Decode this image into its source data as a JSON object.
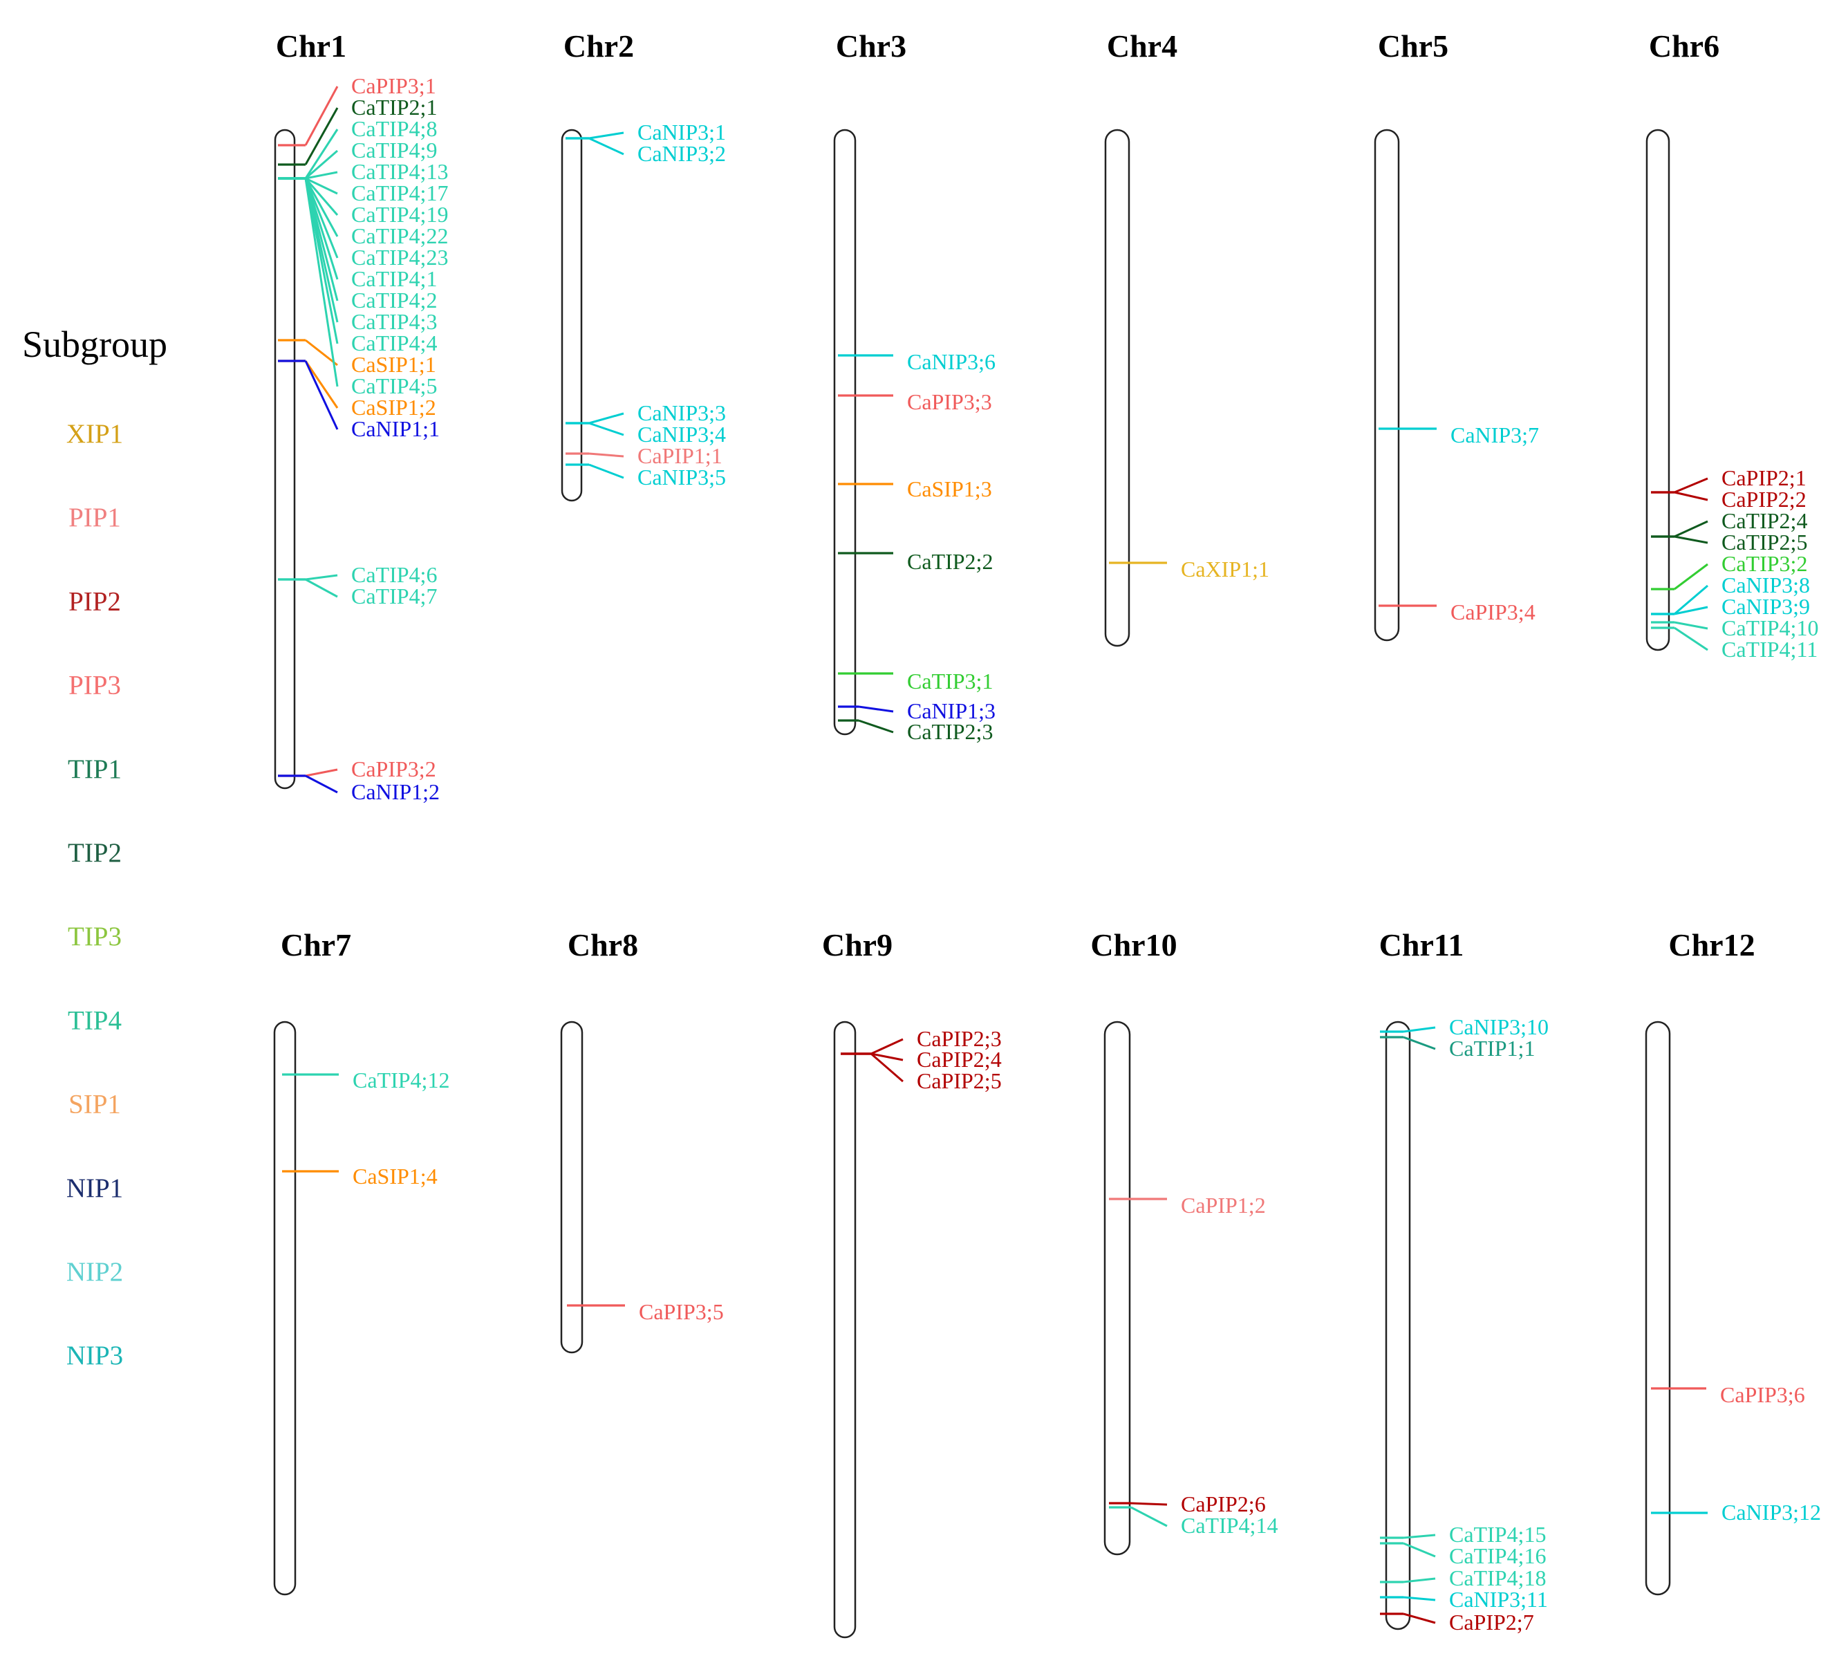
{
  "legend": {
    "title": "Subgroup",
    "items": [
      {
        "label": "XIP1",
        "color": "#D4A017"
      },
      {
        "label": "PIP1",
        "color": "#F08080"
      },
      {
        "label": "PIP2",
        "color": "#B22222"
      },
      {
        "label": "PIP3",
        "color": "#F47070"
      },
      {
        "label": "TIP1",
        "color": "#1E7B55"
      },
      {
        "label": "TIP2",
        "color": "#1E5E42"
      },
      {
        "label": "TIP3",
        "color": "#8CC63F"
      },
      {
        "label": "TIP4",
        "color": "#2BBF95"
      },
      {
        "label": "SIP1",
        "color": "#F4A460"
      },
      {
        "label": "NIP1",
        "color": "#1C2E6E"
      },
      {
        "label": "NIP2",
        "color": "#5FD0D0"
      },
      {
        "label": "NIP3",
        "color": "#1BB5B5"
      }
    ]
  },
  "chromosomes": [
    {
      "name": "Chr1",
      "genes": [
        {
          "label": "CaPIP3;1",
          "color": "#F05A5A"
        },
        {
          "label": "CaTIP2;1",
          "color": "#0F5A1E"
        },
        {
          "label": "CaTIP4;8",
          "color": "#2DD3B0"
        },
        {
          "label": "CaTIP4;9",
          "color": "#2DD3B0"
        },
        {
          "label": "CaTIP4;13",
          "color": "#2DD3B0"
        },
        {
          "label": "CaTIP4;17",
          "color": "#2DD3B0"
        },
        {
          "label": "CaTIP4;19",
          "color": "#2DD3B0"
        },
        {
          "label": "CaTIP4;22",
          "color": "#2DD3B0"
        },
        {
          "label": "CaTIP4;23",
          "color": "#2DD3B0"
        },
        {
          "label": "CaTIP4;1",
          "color": "#2DD3B0"
        },
        {
          "label": "CaTIP4;2",
          "color": "#2DD3B0"
        },
        {
          "label": "CaTIP4;3",
          "color": "#2DD3B0"
        },
        {
          "label": "CaTIP4;4",
          "color": "#2DD3B0"
        },
        {
          "label": "CaSIP1;1",
          "color": "#FF8C00"
        },
        {
          "label": "CaTIP4;5",
          "color": "#2DD3B0"
        },
        {
          "label": "CaSIP1;2",
          "color": "#FF8C00"
        },
        {
          "label": "CaNIP1;1",
          "color": "#1010E0"
        },
        {
          "label": "CaTIP4;6",
          "color": "#2DD3B0"
        },
        {
          "label": "CaTIP4;7",
          "color": "#2DD3B0"
        },
        {
          "label": "CaPIP3;2",
          "color": "#F05A5A"
        },
        {
          "label": "CaNIP1;2",
          "color": "#1010E0"
        }
      ]
    },
    {
      "name": "Chr2",
      "genes": [
        {
          "label": "CaNIP3;1",
          "color": "#00CED1"
        },
        {
          "label": "CaNIP3;2",
          "color": "#00CED1"
        },
        {
          "label": "CaNIP3;3",
          "color": "#00CED1"
        },
        {
          "label": "CaNIP3;4",
          "color": "#00CED1"
        },
        {
          "label": "CaPIP1;1",
          "color": "#F07878"
        },
        {
          "label": "CaNIP3;5",
          "color": "#00CED1"
        }
      ]
    },
    {
      "name": "Chr3",
      "genes": [
        {
          "label": "CaNIP3;6",
          "color": "#00CED1"
        },
        {
          "label": "CaPIP3;3",
          "color": "#F05A5A"
        },
        {
          "label": "CaSIP1;3",
          "color": "#FF8C00"
        },
        {
          "label": "CaTIP2;2",
          "color": "#0F5A1E"
        },
        {
          "label": "CaTIP3;1",
          "color": "#32CD32"
        },
        {
          "label": "CaNIP1;3",
          "color": "#1010E0"
        },
        {
          "label": "CaTIP2;3",
          "color": "#0F5A1E"
        }
      ]
    },
    {
      "name": "Chr4",
      "genes": [
        {
          "label": "CaXIP1;1",
          "color": "#E6B422"
        }
      ]
    },
    {
      "name": "Chr5",
      "genes": [
        {
          "label": "CaNIP3;7",
          "color": "#00CED1"
        },
        {
          "label": "CaPIP3;4",
          "color": "#F05A5A"
        }
      ]
    },
    {
      "name": "Chr6",
      "genes": [
        {
          "label": "CaPIP2;1",
          "color": "#B20000"
        },
        {
          "label": "CaPIP2;2",
          "color": "#B20000"
        },
        {
          "label": "CaTIP2;4",
          "color": "#0F5A1E"
        },
        {
          "label": "CaTIP2;5",
          "color": "#0F5A1E"
        },
        {
          "label": "CaTIP3;2",
          "color": "#32CD32"
        },
        {
          "label": "CaNIP3;8",
          "color": "#00CED1"
        },
        {
          "label": "CaNIP3;9",
          "color": "#00CED1"
        },
        {
          "label": "CaTIP4;10",
          "color": "#2DD3B0"
        },
        {
          "label": "CaTIP4;11",
          "color": "#2DD3B0"
        }
      ]
    },
    {
      "name": "Chr7",
      "genes": [
        {
          "label": "CaTIP4;12",
          "color": "#2DD3B0"
        },
        {
          "label": "CaSIP1;4",
          "color": "#FF8C00"
        }
      ]
    },
    {
      "name": "Chr8",
      "genes": [
        {
          "label": "CaPIP3;5",
          "color": "#F05A5A"
        }
      ]
    },
    {
      "name": "Chr9",
      "genes": [
        {
          "label": "CaPIP2;3",
          "color": "#B20000"
        },
        {
          "label": "CaPIP2;4",
          "color": "#B20000"
        },
        {
          "label": "CaPIP2;5",
          "color": "#B20000"
        }
      ]
    },
    {
      "name": "Chr10",
      "genes": [
        {
          "label": "CaPIP1;2",
          "color": "#F07878"
        },
        {
          "label": "CaPIP2;6",
          "color": "#B20000"
        },
        {
          "label": "CaTIP4;14",
          "color": "#2DD3B0"
        }
      ]
    },
    {
      "name": "Chr11",
      "genes": [
        {
          "label": "CaNIP3;10",
          "color": "#00CED1"
        },
        {
          "label": "CaTIP1;1",
          "color": "#1A9A80"
        },
        {
          "label": "CaTIP4;15",
          "color": "#2DD3B0"
        },
        {
          "label": "CaTIP4;16",
          "color": "#2DD3B0"
        },
        {
          "label": "CaTIP4;18",
          "color": "#2DD3B0"
        },
        {
          "label": "CaNIP3;11",
          "color": "#00CED1"
        },
        {
          "label": "CaPIP2;7",
          "color": "#B20000"
        }
      ]
    },
    {
      "name": "Chr12",
      "genes": [
        {
          "label": "CaPIP3;6",
          "color": "#F05A5A"
        },
        {
          "label": "CaNIP3;12",
          "color": "#00CED1"
        }
      ]
    }
  ]
}
